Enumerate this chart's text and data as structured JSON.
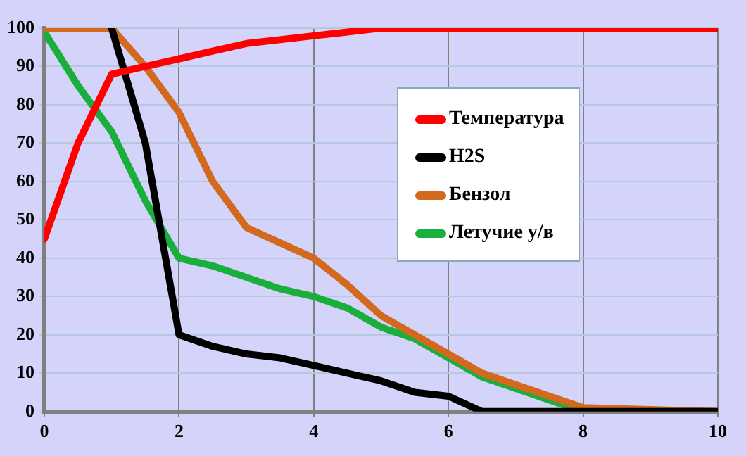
{
  "chart_data": {
    "type": "line",
    "xlim": [
      0,
      10
    ],
    "xticks": [
      0,
      2,
      4,
      6,
      8,
      10
    ],
    "ylim": [
      0,
      100
    ],
    "yticks": [
      0,
      10,
      20,
      30,
      40,
      50,
      60,
      70,
      80,
      90,
      100
    ],
    "grid": true,
    "legend": "top right",
    "marker": "none",
    "line_style": "solid",
    "series": [
      {
        "name": "Температура",
        "color": "#ff0000",
        "x": [
          0,
          0.5,
          1,
          1.5,
          2,
          2.5,
          3,
          3.5,
          4,
          4.5,
          5,
          10
        ],
        "values": [
          45,
          70,
          88,
          90,
          92,
          94,
          96,
          97,
          98,
          99,
          100,
          100
        ]
      },
      {
        "name": "H2S",
        "color": "#000000",
        "x": [
          1,
          1.5,
          2,
          2.5,
          3,
          3.5,
          4,
          4.5,
          5,
          5.5,
          6,
          6.5,
          10
        ],
        "values": [
          100,
          70,
          20,
          17,
          15,
          14,
          12,
          10,
          8,
          5,
          4,
          0,
          0
        ]
      },
      {
        "name": "Бензол",
        "color": "#d2691e",
        "x": [
          0,
          1,
          1.5,
          2,
          2.5,
          3,
          3.5,
          4,
          4.5,
          5,
          5.5,
          6,
          6.5,
          7,
          7.5,
          8,
          10
        ],
        "values": [
          100,
          100,
          90,
          78,
          60,
          48,
          44,
          40,
          33,
          25,
          20,
          15,
          10,
          7,
          4,
          1,
          0
        ]
      },
      {
        "name": "Летучие у/в",
        "color": "#1aae3c",
        "x": [
          0,
          0.5,
          1,
          1.5,
          2,
          2.5,
          3,
          3.5,
          4,
          4.5,
          5,
          5.5,
          6,
          6.5,
          7,
          7.5,
          8,
          10
        ],
        "values": [
          99,
          85,
          73,
          55,
          40,
          38,
          35,
          32,
          30,
          27,
          22,
          19,
          14,
          9,
          6,
          3,
          0,
          0
        ]
      }
    ]
  }
}
